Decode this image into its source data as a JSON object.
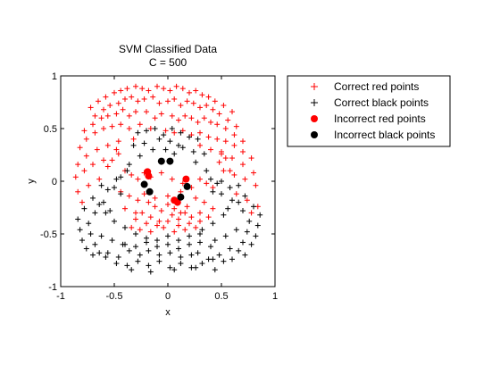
{
  "chart_data": {
    "type": "scatter",
    "title": "SVM Classified Data",
    "subtitle": "C = 500",
    "xlabel": "x",
    "ylabel": "y",
    "xlim": [
      -1,
      1
    ],
    "ylim": [
      -1,
      1
    ],
    "xticks": [
      -1,
      -0.5,
      0,
      0.5,
      1
    ],
    "yticks": [
      -1,
      -0.5,
      0,
      0.5,
      1
    ],
    "xtick_labels": [
      "-1",
      "-0.5",
      "0",
      "0.5",
      "1"
    ],
    "ytick_labels": [
      "-1",
      "-0.5",
      "0",
      "0.5",
      "1"
    ],
    "grid": false,
    "legend_position": "outside-right",
    "series": [
      {
        "name": "Correct red points",
        "marker": "plus",
        "color": "#ff0000",
        "x": [
          -0.72,
          -0.65,
          -0.58,
          -0.5,
          -0.44,
          -0.38,
          -0.3,
          -0.24,
          -0.18,
          -0.1,
          -0.04,
          0.02,
          0.08,
          0.14,
          0.2,
          0.26,
          0.32,
          0.38,
          0.44,
          0.52,
          0.6,
          -0.68,
          -0.6,
          -0.54,
          -0.46,
          -0.4,
          -0.34,
          -0.28,
          -0.22,
          -0.14,
          -0.08,
          0.0,
          0.06,
          0.12,
          0.18,
          0.24,
          0.3,
          0.36,
          0.42,
          0.48,
          0.56,
          0.64,
          -0.78,
          -0.7,
          -0.62,
          -0.56,
          -0.48,
          -0.42,
          -0.36,
          -0.3,
          -0.2,
          -0.12,
          -0.06,
          0.04,
          0.1,
          0.16,
          0.22,
          0.28,
          0.34,
          0.4,
          0.46,
          0.54,
          0.62,
          0.7,
          -0.82,
          -0.76,
          -0.68,
          -0.6,
          -0.52,
          -0.44,
          -0.36,
          -0.26,
          -0.16,
          -0.02,
          0.06,
          0.14,
          0.22,
          0.3,
          0.38,
          0.46,
          0.54,
          0.62,
          0.7,
          0.78,
          -0.84,
          -0.76,
          -0.66,
          -0.56,
          -0.46,
          -0.32,
          0.3,
          0.4,
          0.5,
          0.6,
          0.7,
          0.8,
          -0.86,
          -0.78,
          -0.7,
          -0.6,
          0.52,
          0.62,
          0.72,
          0.82,
          -0.84,
          -0.74,
          -0.64,
          0.64,
          0.74,
          0.84,
          -0.8,
          0.78,
          -0.4,
          -0.34,
          -0.28,
          -0.22,
          0.3,
          0.36,
          0.42,
          -0.44,
          -0.36,
          -0.28,
          0.26,
          0.34,
          0.42,
          -0.4,
          -0.3,
          0.3,
          0.38,
          -0.18,
          -0.12,
          -0.06,
          0.0,
          0.06,
          0.12,
          0.18,
          -0.24,
          -0.16,
          -0.08,
          0.04,
          0.1,
          0.16,
          0.22,
          -0.3,
          -0.2,
          -0.1,
          0.0,
          0.1,
          0.2,
          0.3,
          -0.34,
          -0.26,
          -0.16,
          -0.04,
          0.06,
          0.16,
          0.26,
          -0.22,
          -0.12,
          0.0,
          0.12,
          0.22,
          -0.16,
          -0.06,
          0.04,
          0.14,
          -0.52,
          -0.46,
          0.48,
          0.54,
          -0.56,
          0.58,
          -0.48,
          0.5
        ],
        "y": [
          0.7,
          0.76,
          0.8,
          0.84,
          0.86,
          0.88,
          0.9,
          0.88,
          0.86,
          0.9,
          0.88,
          0.86,
          0.9,
          0.88,
          0.84,
          0.86,
          0.82,
          0.8,
          0.76,
          0.72,
          0.66,
          0.62,
          0.68,
          0.72,
          0.74,
          0.78,
          0.8,
          0.76,
          0.78,
          0.8,
          0.74,
          0.76,
          0.78,
          0.72,
          0.76,
          0.74,
          0.7,
          0.72,
          0.68,
          0.64,
          0.58,
          0.52,
          0.48,
          0.54,
          0.6,
          0.62,
          0.64,
          0.68,
          0.62,
          0.66,
          0.66,
          0.6,
          0.64,
          0.62,
          0.58,
          0.62,
          0.6,
          0.56,
          0.6,
          0.56,
          0.54,
          0.5,
          0.44,
          0.38,
          0.32,
          0.4,
          0.46,
          0.5,
          0.52,
          0.54,
          0.5,
          0.54,
          0.5,
          0.48,
          0.46,
          0.48,
          0.44,
          0.46,
          0.42,
          0.4,
          0.38,
          0.34,
          0.28,
          0.22,
          0.16,
          0.24,
          0.3,
          0.34,
          0.38,
          0.4,
          0.34,
          0.3,
          0.26,
          0.22,
          0.16,
          0.08,
          0.04,
          0.1,
          0.16,
          0.2,
          0.1,
          0.06,
          0.02,
          -0.04,
          -0.1,
          -0.04,
          0.02,
          -0.12,
          -0.18,
          -0.24,
          -0.2,
          -0.3,
          0.1,
          0.06,
          0.02,
          0.08,
          0.02,
          -0.02,
          -0.06,
          -0.1,
          -0.14,
          -0.18,
          -0.16,
          -0.2,
          -0.26,
          -0.26,
          -0.3,
          -0.3,
          -0.34,
          -0.2,
          -0.24,
          -0.28,
          -0.22,
          -0.26,
          -0.3,
          -0.24,
          -0.3,
          -0.34,
          -0.38,
          -0.32,
          -0.36,
          -0.3,
          -0.34,
          -0.36,
          -0.4,
          -0.42,
          -0.38,
          -0.42,
          -0.4,
          -0.38,
          -0.44,
          -0.46,
          -0.48,
          -0.44,
          -0.48,
          -0.46,
          -0.44,
          -0.12,
          -0.16,
          -0.14,
          -0.1,
          -0.06,
          0.04,
          0.08,
          0.02,
          -0.02,
          0.2,
          0.26,
          0.18,
          0.22,
          0.14,
          0.1,
          0.3,
          0.28
        ]
      },
      {
        "name": "Correct black points",
        "marker": "plus",
        "color": "#000000",
        "x": [
          -0.28,
          -0.2,
          -0.12,
          -0.04,
          0.04,
          0.12,
          0.2,
          0.28,
          -0.32,
          -0.22,
          -0.14,
          0.14,
          0.24,
          0.34,
          -0.26,
          0.26,
          -0.36,
          0.36,
          -0.44,
          -0.38,
          0.4,
          0.46,
          -0.08,
          0.02,
          0.1,
          -0.02,
          0.06,
          -0.62,
          -0.56,
          -0.5,
          -0.44,
          0.42,
          0.5,
          0.58,
          0.66,
          -0.7,
          -0.6,
          0.6,
          0.72,
          -0.78,
          -0.68,
          0.7,
          0.8,
          -0.84,
          -0.74,
          0.76,
          0.86,
          -0.82,
          -0.72,
          0.74,
          0.84,
          -0.8,
          -0.68,
          0.7,
          0.82,
          -0.76,
          -0.64,
          0.66,
          0.78,
          -0.7,
          -0.58,
          0.6,
          0.72,
          -0.62,
          -0.52,
          -0.42,
          0.44,
          0.54,
          0.64,
          -0.56,
          -0.46,
          -0.36,
          -0.26,
          0.28,
          0.38,
          0.48,
          0.58,
          -0.48,
          -0.38,
          -0.28,
          -0.18,
          -0.08,
          0.02,
          0.12,
          0.22,
          0.32,
          0.42,
          0.52,
          -0.4,
          -0.3,
          -0.2,
          -0.1,
          0.0,
          0.1,
          0.2,
          0.3,
          0.4,
          -0.3,
          -0.2,
          -0.1,
          0.0,
          0.1,
          0.2,
          0.3,
          -0.18,
          -0.08,
          0.02,
          0.12,
          0.22,
          -0.58,
          -0.5,
          -0.4,
          -0.3,
          0.32,
          0.42,
          0.52,
          -0.64,
          -0.54,
          0.56,
          0.66,
          -0.48,
          0.5,
          -0.34,
          -0.16,
          0.06,
          0.26,
          0.44
        ],
        "y": [
          0.46,
          0.48,
          0.5,
          0.44,
          0.5,
          0.46,
          0.42,
          0.4,
          0.34,
          0.36,
          0.3,
          0.32,
          0.28,
          0.26,
          0.24,
          0.18,
          0.16,
          0.1,
          0.04,
          0.1,
          0.02,
          -0.02,
          0.4,
          0.38,
          0.34,
          0.3,
          0.26,
          -0.04,
          -0.08,
          -0.06,
          -0.12,
          -0.1,
          -0.12,
          -0.06,
          -0.04,
          -0.16,
          -0.2,
          -0.18,
          -0.14,
          -0.26,
          -0.3,
          -0.28,
          -0.24,
          -0.36,
          -0.4,
          -0.38,
          -0.32,
          -0.46,
          -0.5,
          -0.48,
          -0.42,
          -0.56,
          -0.6,
          -0.58,
          -0.52,
          -0.64,
          -0.68,
          -0.66,
          -0.6,
          -0.7,
          -0.72,
          -0.74,
          -0.7,
          -0.52,
          -0.56,
          -0.6,
          -0.56,
          -0.52,
          -0.46,
          -0.68,
          -0.72,
          -0.66,
          -0.7,
          -0.68,
          -0.74,
          -0.7,
          -0.64,
          -0.78,
          -0.8,
          -0.76,
          -0.8,
          -0.76,
          -0.82,
          -0.78,
          -0.82,
          -0.78,
          -0.74,
          -0.76,
          -0.6,
          -0.62,
          -0.58,
          -0.62,
          -0.6,
          -0.64,
          -0.6,
          -0.58,
          -0.62,
          -0.5,
          -0.54,
          -0.56,
          -0.52,
          -0.56,
          -0.52,
          -0.5,
          -0.66,
          -0.7,
          -0.68,
          -0.72,
          -0.7,
          -0.3,
          -0.38,
          -0.44,
          -0.5,
          -0.46,
          -0.4,
          -0.32,
          -0.22,
          -0.28,
          -0.26,
          -0.2,
          0.02,
          0.0,
          -0.84,
          -0.86,
          -0.84,
          -0.82,
          -0.84
        ]
      },
      {
        "name": "Incorrect red points",
        "marker": "filled-circle",
        "color": "#ff0000",
        "x": [
          -0.19,
          -0.18,
          0.17,
          0.06,
          0.09
        ],
        "y": [
          0.09,
          0.05,
          0.02,
          -0.18,
          -0.2
        ]
      },
      {
        "name": "Incorrect black points",
        "marker": "filled-circle",
        "color": "#000000",
        "x": [
          -0.06,
          0.02,
          -0.22,
          -0.17,
          0.18,
          0.12
        ],
        "y": [
          0.19,
          0.19,
          -0.03,
          -0.1,
          -0.05,
          -0.15
        ]
      }
    ]
  }
}
